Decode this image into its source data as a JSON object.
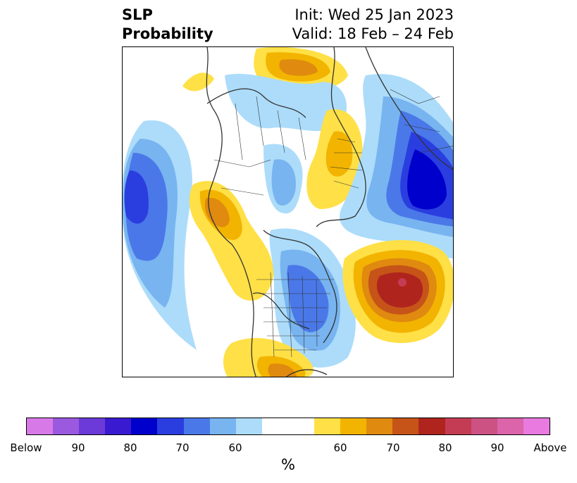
{
  "title": {
    "left_line1": "SLP",
    "left_line2": "Probability",
    "right_line1": "Init: Wed 25 Jan 2023",
    "right_line2": "Valid: 18 Feb – 24 Feb"
  },
  "colorbar": {
    "unit": "%",
    "colors": [
      "#d77ae8",
      "#9b59e0",
      "#6b3ad8",
      "#3a1ad0",
      "#0000cc",
      "#2a3ee0",
      "#4a78e8",
      "#78b4f0",
      "#acdcfa",
      "#ffffff",
      "#ffe046",
      "#f2b400",
      "#e08a10",
      "#c65418",
      "#b0241e",
      "#c43c54",
      "#cc5284",
      "#dc64aa",
      "#e87ae0"
    ],
    "labels": [
      "Below",
      "90",
      "80",
      "70",
      "60",
      "60",
      "70",
      "80",
      "90",
      "Above"
    ]
  },
  "map": {
    "projection": "north polar stereographic",
    "features": [
      "coastlines",
      "country borders",
      "US state borders",
      "probability shading"
    ]
  }
}
